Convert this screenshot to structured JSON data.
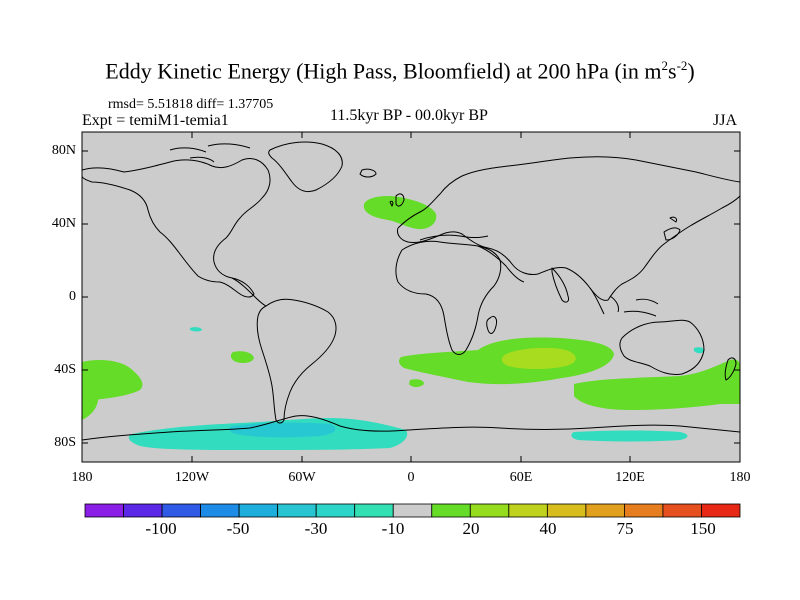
{
  "title": {
    "main": "Eddy Kinetic Energy (High Pass, Bloomfield) at 200 hPa (in m",
    "sup1": "2",
    "mid": "s",
    "sup2": "-2",
    "close": ")"
  },
  "stats": "rmsd= 5.51818 diff= 1.37705",
  "experiment": "Expt = temiM1-temia1",
  "period": "11.5kyr BP - 00.0kyr BP",
  "season": "JJA",
  "lat_labels": [
    "80N",
    "40N",
    "0",
    "40S",
    "80S"
  ],
  "lon_labels": [
    "180",
    "120W",
    "60W",
    "0",
    "60E",
    "120E",
    "180"
  ],
  "colorbar": {
    "labels": [
      "-100",
      "-50",
      "-30",
      "-10",
      "20",
      "40",
      "75",
      "150"
    ],
    "colors": [
      "#8a1ee6",
      "#5a28e6",
      "#2f5ae6",
      "#1e8ce6",
      "#1eaedc",
      "#28c4d2",
      "#2dd4c8",
      "#32e0b4",
      "#cccccc",
      "#64dc28",
      "#96dc1e",
      "#bed21e",
      "#d7be1e",
      "#e1a01e",
      "#e67d1e",
      "#e6501e",
      "#e62814"
    ]
  },
  "colors": {
    "background_land": "#cccccc",
    "positive_low": "#64dc28",
    "positive_mid": "#a8dc1e",
    "negative_low": "#32dcbe",
    "negative_mid": "#28c8d2",
    "coast": "#000000"
  }
}
